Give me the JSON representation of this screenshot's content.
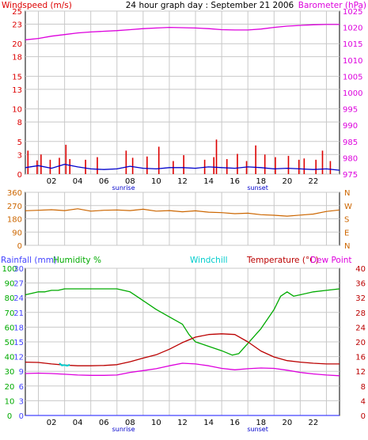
{
  "colors": {
    "wind": "#dd0000",
    "wind_avg": "#0000cc",
    "barometer": "#dd00dd",
    "direction": "#cc6600",
    "rainfall": "#4444ff",
    "humidity": "#00aa00",
    "windchill": "#00cccc",
    "temperature": "#bb0000",
    "dewpoint": "#dd00dd",
    "grid": "#c8c8c8",
    "header": "#000000"
  },
  "header": {
    "windspeed_label": "Windspeed (m/s)",
    "title": "24 hour graph day : September 21 2006",
    "barometer_label": "Barometer (hPa)"
  },
  "panel2_header": {
    "rainfall_label": "Rainfall (mm)",
    "humidity_label": "Humidity %",
    "windchill_label": "Windchill",
    "temperature_label": "Temperature (°C)",
    "dewpoint_label": "Dew Point"
  },
  "sun": {
    "sunrise": "sunrise",
    "sunset": "sunset",
    "sunrise_hour": 7.5,
    "sunset_hour": 17.75
  },
  "x_ticks": [
    "02",
    "04",
    "06",
    "08",
    "10",
    "12",
    "14",
    "16",
    "18",
    "20",
    "22"
  ],
  "chart_data": [
    {
      "type": "line",
      "title": "24 hour graph day : September 21 2006",
      "xlim": [
        0,
        24
      ],
      "series": [
        {
          "name": "Windspeed (m/s)",
          "axis": "left",
          "ylim": [
            0,
            25
          ],
          "y_ticks": [
            0,
            3,
            5,
            8,
            10,
            13,
            15,
            18,
            20,
            23,
            25
          ],
          "bars_x": [
            0.2,
            0.9,
            1.2,
            1.9,
            2.6,
            3.1,
            3.4,
            4.6,
            5.5,
            7.7,
            8.2,
            9.3,
            10.2,
            11.3,
            12.1,
            13.7,
            14.4,
            14.6,
            15.4,
            16.2,
            16.9,
            17.6,
            18.3,
            19.1,
            20.1,
            20.9,
            21.3,
            22.2,
            22.7,
            23.3
          ],
          "bars_y": [
            3.6,
            2.1,
            3.0,
            2.2,
            2.5,
            4.5,
            2.3,
            2.2,
            2.6,
            3.6,
            2.5,
            2.7,
            4.2,
            2.0,
            2.9,
            2.2,
            2.6,
            5.3,
            2.3,
            3.1,
            2.0,
            4.4,
            3.0,
            2.6,
            2.8,
            2.2,
            2.4,
            2.2,
            3.6,
            2.0
          ]
        },
        {
          "name": "Average windspeed",
          "axis": "left",
          "x": [
            0,
            1,
            2,
            3,
            4,
            5,
            6,
            7,
            8,
            9,
            10,
            11,
            12,
            13,
            14,
            15,
            16,
            17,
            18,
            19,
            20,
            21,
            22,
            23,
            24
          ],
          "y": [
            1.0,
            1.3,
            0.9,
            1.5,
            1.1,
            0.8,
            0.7,
            0.8,
            1.2,
            0.9,
            0.8,
            1.0,
            1.0,
            0.9,
            1.1,
            1.0,
            0.9,
            1.1,
            1.0,
            0.8,
            0.9,
            0.8,
            0.7,
            0.8,
            0.6
          ]
        },
        {
          "name": "Barometer (hPa)",
          "axis": "right",
          "ylim": [
            975,
            1025
          ],
          "y_ticks": [
            975,
            980,
            985,
            990,
            995,
            1000,
            1005,
            1010,
            1015,
            1020,
            1025
          ],
          "x": [
            0,
            1,
            2,
            3,
            4,
            5,
            6,
            7,
            8,
            9,
            10,
            11,
            12,
            13,
            14,
            15,
            16,
            17,
            18,
            19,
            20,
            21,
            22,
            23,
            24
          ],
          "y": [
            1016.2,
            1016.6,
            1017.3,
            1017.8,
            1018.3,
            1018.6,
            1018.8,
            1019.0,
            1019.3,
            1019.6,
            1019.8,
            1020.0,
            1019.9,
            1019.8,
            1019.6,
            1019.3,
            1019.2,
            1019.2,
            1019.5,
            1020.0,
            1020.4,
            1020.6,
            1020.8,
            1020.9,
            1020.9
          ]
        }
      ]
    },
    {
      "type": "line",
      "xlim": [
        0,
        24
      ],
      "ylim": [
        0,
        360
      ],
      "y_ticks": [
        0,
        90,
        180,
        270,
        360
      ],
      "right_labels": [
        "N",
        "W",
        "S",
        "E",
        "N"
      ],
      "series": [
        {
          "name": "Wind direction",
          "x": [
            0,
            1,
            2,
            3,
            4,
            5,
            6,
            7,
            8,
            9,
            10,
            11,
            12,
            13,
            14,
            15,
            16,
            17,
            18,
            19,
            20,
            21,
            22,
            23,
            24
          ],
          "y": [
            235,
            238,
            242,
            236,
            248,
            232,
            238,
            240,
            236,
            245,
            232,
            236,
            228,
            234,
            225,
            222,
            215,
            218,
            208,
            204,
            198,
            205,
            212,
            230,
            240
          ]
        }
      ]
    },
    {
      "type": "line",
      "xlim": [
        0,
        24
      ],
      "axes": {
        "rainfall": {
          "ylim": [
            0,
            30
          ],
          "y_ticks": [
            0,
            3,
            6,
            9,
            12,
            15,
            18,
            21,
            24,
            27,
            30
          ]
        },
        "humidity": {
          "ylim": [
            0,
            100
          ],
          "y_ticks": [
            0,
            10,
            20,
            30,
            40,
            50,
            60,
            70,
            80,
            90,
            100
          ]
        },
        "temperature": {
          "ylim": [
            0,
            40
          ],
          "y_ticks": [
            0,
            4,
            8,
            12,
            16,
            20,
            24,
            28,
            32,
            36,
            40
          ]
        }
      },
      "series": [
        {
          "name": "Rainfall (mm)",
          "axis": "rainfall",
          "x": [
            0,
            24
          ],
          "y": [
            0,
            0
          ]
        },
        {
          "name": "Humidity %",
          "axis": "humidity",
          "x": [
            0,
            0.5,
            1,
            1.5,
            2,
            2.5,
            3,
            4,
            5,
            6,
            7,
            7.5,
            8,
            8.5,
            9,
            10,
            11,
            12,
            12.5,
            13,
            14,
            15,
            15.8,
            16.3,
            17,
            18,
            19,
            19.5,
            20,
            20.5,
            21,
            22,
            23,
            24
          ],
          "y": [
            82,
            83,
            84,
            84,
            85,
            85,
            86,
            86,
            86,
            86,
            86,
            85,
            84,
            81,
            78,
            72,
            67,
            62,
            55,
            50,
            47,
            44,
            41,
            42,
            49,
            59,
            72,
            81,
            84,
            81,
            82,
            84,
            85,
            86
          ]
        },
        {
          "name": "Temperature (°C)",
          "axis": "temperature",
          "x": [
            0,
            1,
            2,
            3,
            4,
            5,
            6,
            7,
            8,
            9,
            10,
            11,
            12,
            13,
            14,
            15,
            16,
            17,
            18,
            19,
            20,
            21,
            22,
            23,
            24
          ],
          "y": [
            14.5,
            14.4,
            14.0,
            13.7,
            13.5,
            13.5,
            13.6,
            13.8,
            14.6,
            15.6,
            16.5,
            18.0,
            19.8,
            21.3,
            22.0,
            22.2,
            22.0,
            20.0,
            17.5,
            15.9,
            14.9,
            14.5,
            14.2,
            14.0,
            14.0
          ]
        },
        {
          "name": "Windchill",
          "axis": "temperature",
          "x": [
            2.6,
            2.8,
            3.0,
            3.2,
            3.4
          ],
          "y": [
            14.2,
            13.6,
            13.7,
            13.5,
            13.8
          ]
        },
        {
          "name": "Dew Point",
          "axis": "temperature",
          "x": [
            0,
            1,
            2,
            3,
            4,
            5,
            6,
            7,
            8,
            9,
            10,
            11,
            12,
            13,
            14,
            15,
            16,
            17,
            18,
            19,
            20,
            21,
            22,
            23,
            24
          ],
          "y": [
            11.4,
            11.5,
            11.4,
            11.2,
            11.0,
            10.9,
            10.9,
            11.0,
            11.7,
            12.2,
            12.7,
            13.5,
            14.2,
            14.0,
            13.5,
            12.8,
            12.4,
            12.7,
            12.9,
            12.8,
            12.3,
            11.7,
            11.3,
            11.0,
            10.8
          ]
        }
      ]
    }
  ]
}
